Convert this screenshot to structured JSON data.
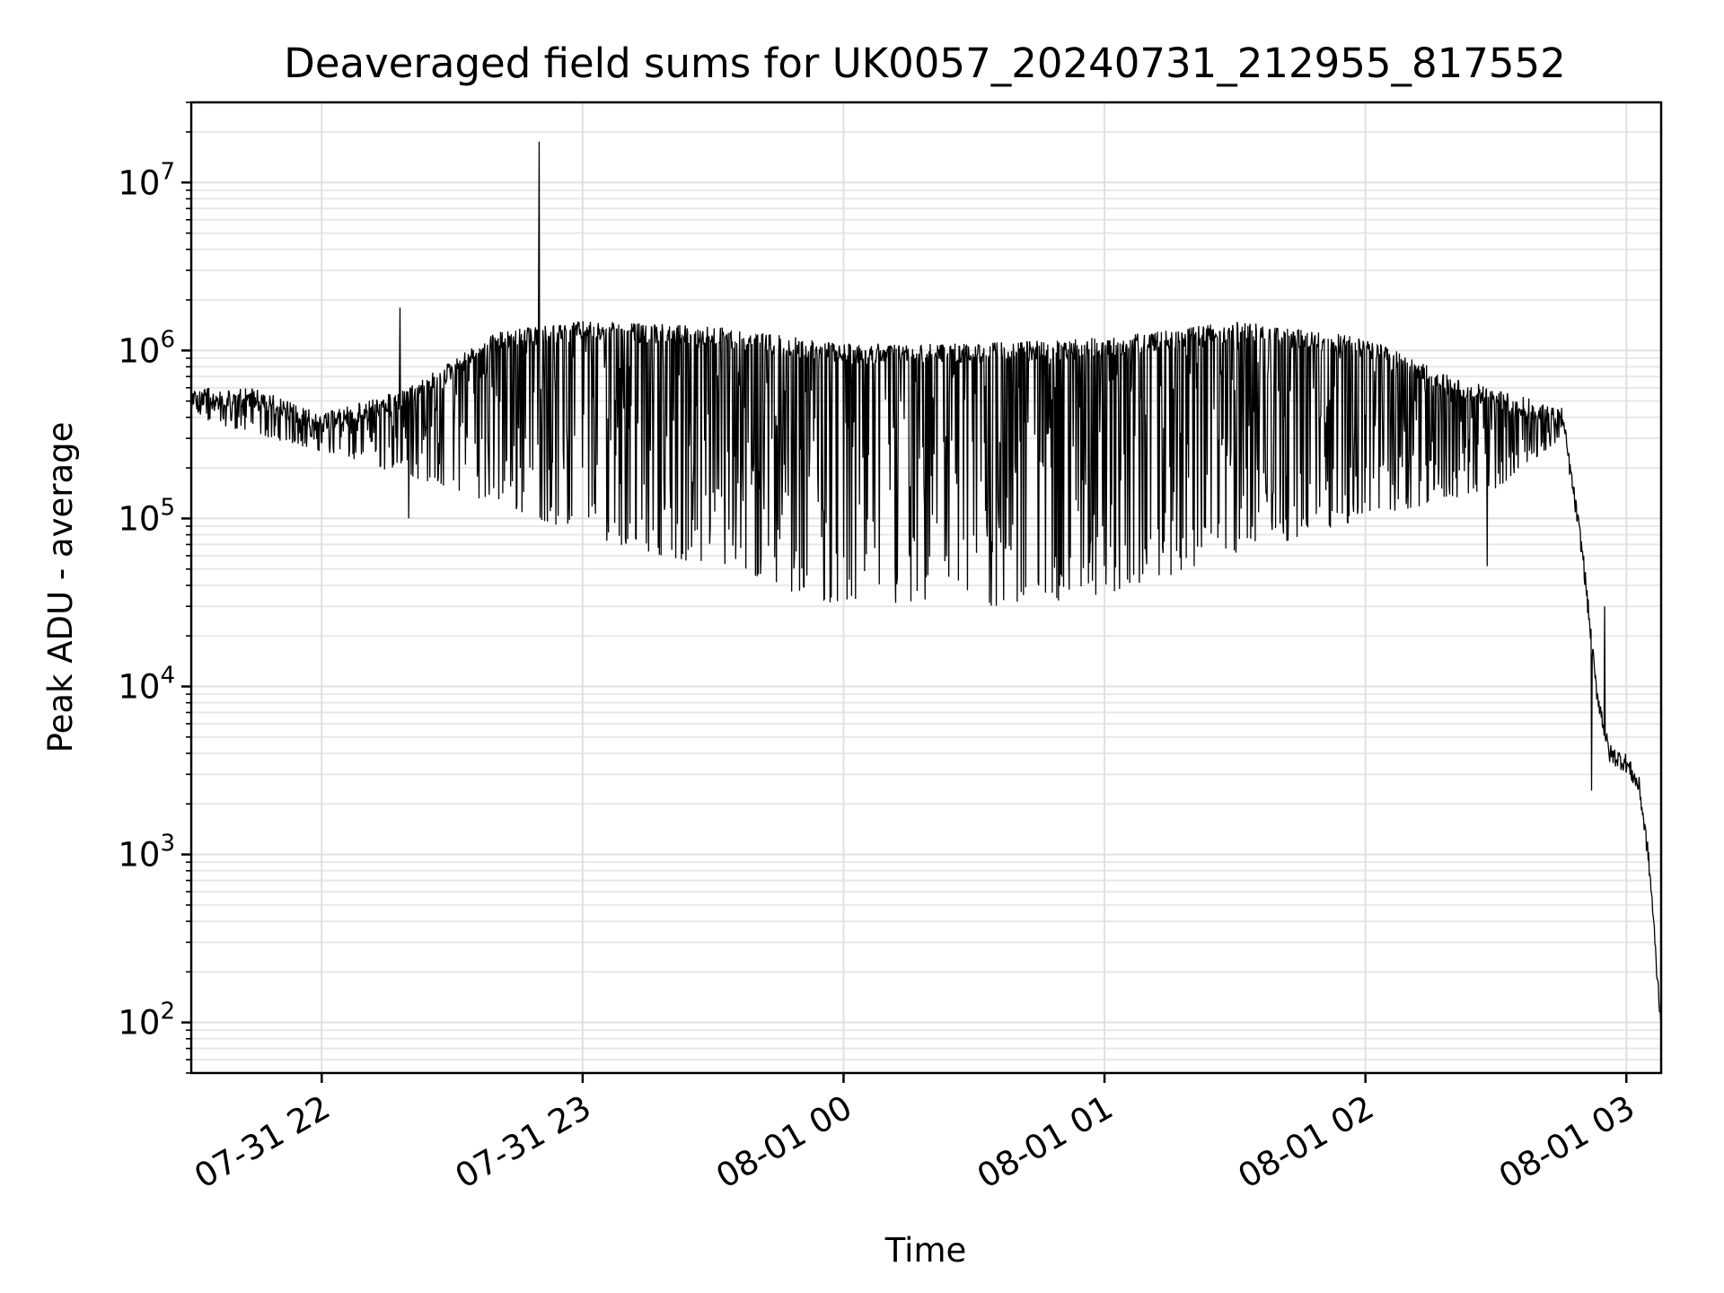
{
  "chart_data": {
    "type": "line",
    "title": "Deaveraged field sums for UK0057_20240731_212955_817552",
    "xlabel": "Time",
    "ylabel": "Peak ADU - average",
    "yscale": "log",
    "ylim": [
      50,
      30000000
    ],
    "xlim": [
      "2024-07-31 21:30",
      "2024-08-01 03:08"
    ],
    "grid": true,
    "x_ticks": [
      {
        "t": "2024-07-31 22:00",
        "label": "07-31 22"
      },
      {
        "t": "2024-07-31 23:00",
        "label": "07-31 23"
      },
      {
        "t": "2024-08-01 00:00",
        "label": "08-01 00"
      },
      {
        "t": "2024-08-01 01:00",
        "label": "08-01 01"
      },
      {
        "t": "2024-08-01 02:00",
        "label": "08-01 02"
      },
      {
        "t": "2024-08-01 03:00",
        "label": "08-01 03"
      }
    ],
    "y_ticks": [
      {
        "value": 100,
        "base": "10",
        "exp": "2"
      },
      {
        "value": 1000,
        "base": "10",
        "exp": "3"
      },
      {
        "value": 10000,
        "base": "10",
        "exp": "4"
      },
      {
        "value": 100000,
        "base": "10",
        "exp": "5"
      },
      {
        "value": 1000000,
        "base": "10",
        "exp": "6"
      },
      {
        "value": 10000000,
        "base": "10",
        "exp": "7"
      }
    ],
    "series": [
      {
        "color": "#000000",
        "baseline": [
          {
            "t": "2024-07-31 21:30",
            "v": 600000
          },
          {
            "t": "2024-07-31 21:45",
            "v": 600000
          },
          {
            "t": "2024-07-31 22:00",
            "v": 420000
          },
          {
            "t": "2024-07-31 22:20",
            "v": 600000
          },
          {
            "t": "2024-07-31 22:40",
            "v": 1300000
          },
          {
            "t": "2024-07-31 23:00",
            "v": 1500000
          },
          {
            "t": "2024-07-31 23:30",
            "v": 1400000
          },
          {
            "t": "2024-08-01 00:00",
            "v": 1100000
          },
          {
            "t": "2024-08-01 00:30",
            "v": 1100000
          },
          {
            "t": "2024-08-01 01:00",
            "v": 1200000
          },
          {
            "t": "2024-08-01 01:30",
            "v": 1500000
          },
          {
            "t": "2024-08-01 02:00",
            "v": 1200000
          },
          {
            "t": "2024-08-01 02:20",
            "v": 700000
          },
          {
            "t": "2024-08-01 02:40",
            "v": 500000
          },
          {
            "t": "2024-08-01 02:45",
            "v": 450000
          },
          {
            "t": "2024-08-01 02:50",
            "v": 60000
          },
          {
            "t": "2024-08-01 02:53",
            "v": 10000
          },
          {
            "t": "2024-08-01 02:56",
            "v": 4000
          },
          {
            "t": "2024-08-01 03:00",
            "v": 3500
          },
          {
            "t": "2024-08-01 03:03",
            "v": 2500
          },
          {
            "t": "2024-08-01 03:05",
            "v": 1000
          },
          {
            "t": "2024-08-01 03:06",
            "v": 500
          },
          {
            "t": "2024-08-01 03:07",
            "v": 200
          },
          {
            "t": "2024-08-01 03:08",
            "v": 100
          }
        ],
        "dip_floor": [
          {
            "t": "2024-07-31 21:30",
            "v": 400000
          },
          {
            "t": "2024-07-31 22:00",
            "v": 250000
          },
          {
            "t": "2024-07-31 22:30",
            "v": 150000
          },
          {
            "t": "2024-07-31 23:00",
            "v": 80000
          },
          {
            "t": "2024-07-31 23:30",
            "v": 50000
          },
          {
            "t": "2024-08-01 00:00",
            "v": 30000
          },
          {
            "t": "2024-08-01 00:30",
            "v": 28000
          },
          {
            "t": "2024-08-01 01:00",
            "v": 35000
          },
          {
            "t": "2024-08-01 01:30",
            "v": 60000
          },
          {
            "t": "2024-08-01 02:00",
            "v": 100000
          },
          {
            "t": "2024-08-01 02:30",
            "v": 150000
          },
          {
            "t": "2024-08-01 02:45",
            "v": 300000
          }
        ],
        "spikes": [
          {
            "t": "2024-07-31 22:50",
            "v": 17500000
          },
          {
            "t": "2024-07-31 22:18",
            "v": 1800000
          },
          {
            "t": "2024-07-31 22:20",
            "v": 100000
          },
          {
            "t": "2024-08-01 02:28",
            "v": 52000
          },
          {
            "t": "2024-08-01 02:55",
            "v": 30000
          },
          {
            "t": "2024-08-01 02:52",
            "v": 2400
          }
        ]
      }
    ]
  }
}
